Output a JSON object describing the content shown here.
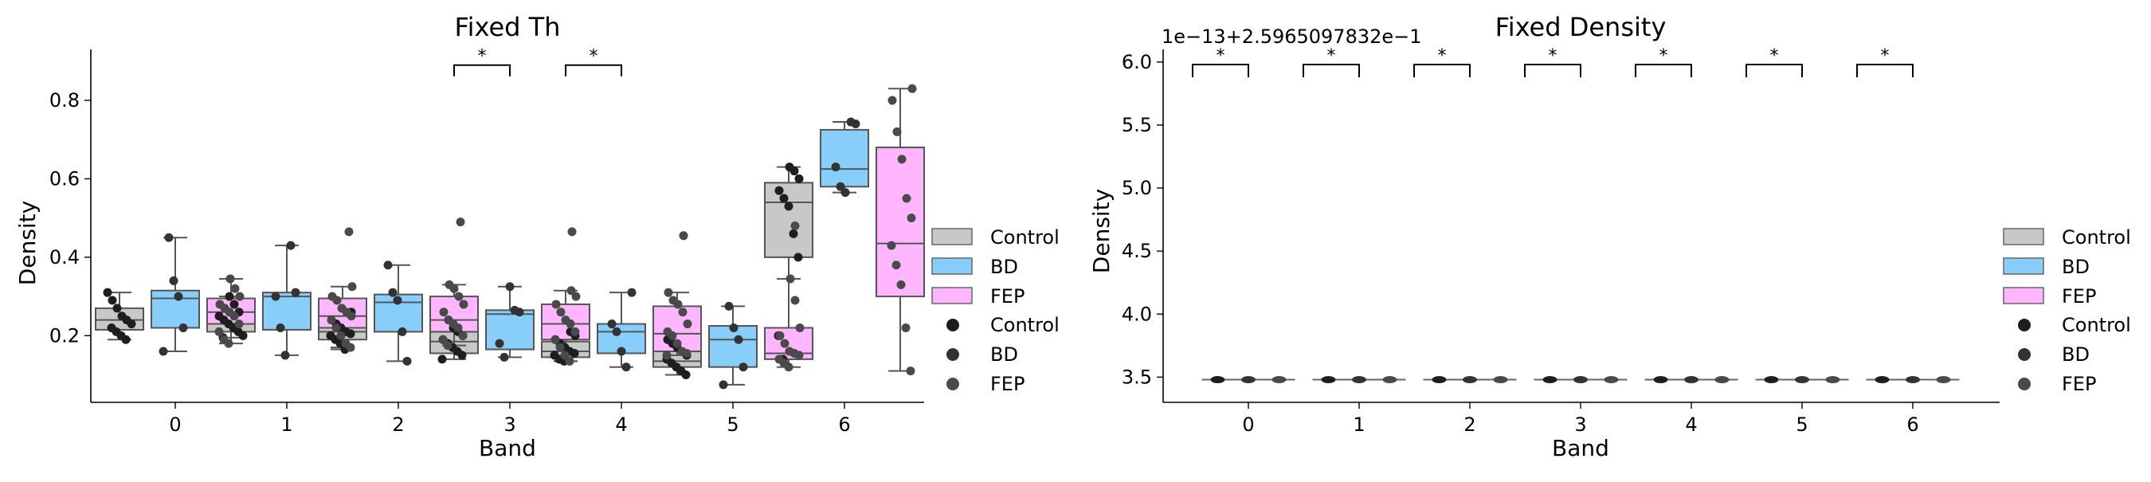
{
  "chart_data": [
    {
      "type": "box",
      "title": "Fixed Th",
      "xlabel": "Band",
      "ylabel": "Density",
      "categories": [
        "0",
        "1",
        "2",
        "3",
        "4",
        "5",
        "6"
      ],
      "yticks": [
        "0.2",
        "0.4",
        "0.6",
        "0.8"
      ],
      "ylim": [
        0.03,
        0.93
      ],
      "series": [
        {
          "name": "Control",
          "color": "#c8c8c8",
          "boxes": [
            {
              "whislo": 0.19,
              "q1": 0.215,
              "med": 0.24,
              "q3": 0.27,
              "whishi": 0.31
            },
            {
              "whislo": 0.195,
              "q1": 0.21,
              "med": 0.24,
              "q3": 0.265,
              "whishi": 0.3
            },
            {
              "whislo": 0.165,
              "q1": 0.19,
              "med": 0.21,
              "q3": 0.235,
              "whishi": 0.26
            },
            {
              "whislo": 0.14,
              "q1": 0.155,
              "med": 0.185,
              "q3": 0.21,
              "whishi": 0.24
            },
            {
              "whislo": 0.135,
              "q1": 0.145,
              "med": 0.16,
              "q3": 0.185,
              "whishi": 0.21
            },
            {
              "whislo": 0.1,
              "q1": 0.12,
              "med": 0.135,
              "q3": 0.16,
              "whishi": 0.19
            },
            {
              "whislo": 0.14,
              "q1": 0.4,
              "med": 0.54,
              "q3": 0.59,
              "whishi": 0.63
            }
          ],
          "points": [
            [
              0.31,
              0.29,
              0.27,
              0.25,
              0.24,
              0.23,
              0.22,
              0.21,
              0.2,
              0.19
            ],
            [
              0.3,
              0.28,
              0.26,
              0.25,
              0.24,
              0.23,
              0.22,
              0.21,
              0.2,
              0.195
            ],
            [
              0.26,
              0.24,
              0.23,
              0.22,
              0.21,
              0.205,
              0.2,
              0.19,
              0.18,
              0.165
            ],
            [
              0.24,
              0.22,
              0.21,
              0.2,
              0.19,
              0.18,
              0.17,
              0.16,
              0.15,
              0.14
            ],
            [
              0.21,
              0.2,
              0.19,
              0.18,
              0.17,
              0.16,
              0.155,
              0.15,
              0.14,
              0.135
            ],
            [
              0.19,
              0.18,
              0.17,
              0.16,
              0.15,
              0.14,
              0.13,
              0.12,
              0.11,
              0.1
            ],
            [
              0.63,
              0.62,
              0.6,
              0.57,
              0.55,
              0.53,
              0.46,
              0.4,
              0.2,
              0.14
            ]
          ]
        },
        {
          "name": "BD",
          "color": "#87cefa",
          "boxes": [
            {
              "whislo": 0.16,
              "q1": 0.22,
              "med": 0.295,
              "q3": 0.315,
              "whishi": 0.45
            },
            {
              "whislo": 0.15,
              "q1": 0.215,
              "med": 0.3,
              "q3": 0.31,
              "whishi": 0.43
            },
            {
              "whislo": 0.135,
              "q1": 0.21,
              "med": 0.285,
              "q3": 0.305,
              "whishi": 0.38
            },
            {
              "whislo": 0.145,
              "q1": 0.165,
              "med": 0.255,
              "q3": 0.265,
              "whishi": 0.325
            },
            {
              "whislo": 0.12,
              "q1": 0.155,
              "med": 0.21,
              "q3": 0.23,
              "whishi": 0.31
            },
            {
              "whislo": 0.075,
              "q1": 0.12,
              "med": 0.19,
              "q3": 0.225,
              "whishi": 0.275
            },
            {
              "whislo": 0.565,
              "q1": 0.58,
              "med": 0.625,
              "q3": 0.725,
              "whishi": 0.745
            }
          ],
          "points": [
            [
              0.45,
              0.34,
              0.3,
              0.22,
              0.16
            ],
            [
              0.43,
              0.31,
              0.3,
              0.22,
              0.15
            ],
            [
              0.38,
              0.31,
              0.29,
              0.21,
              0.135
            ],
            [
              0.325,
              0.265,
              0.26,
              0.18,
              0.145
            ],
            [
              0.31,
              0.23,
              0.21,
              0.16,
              0.12
            ],
            [
              0.275,
              0.22,
              0.19,
              0.12,
              0.075
            ],
            [
              0.745,
              0.74,
              0.63,
              0.58,
              0.565
            ]
          ]
        },
        {
          "name": "FEP",
          "color": "#ffb6ff",
          "boxes": [
            {
              "whislo": 0.18,
              "q1": 0.23,
              "med": 0.26,
              "q3": 0.295,
              "whishi": 0.345
            },
            {
              "whislo": 0.17,
              "q1": 0.22,
              "med": 0.25,
              "q3": 0.295,
              "whishi": 0.325
            },
            {
              "whislo": 0.175,
              "q1": 0.21,
              "med": 0.24,
              "q3": 0.3,
              "whishi": 0.33
            },
            {
              "whislo": 0.135,
              "q1": 0.19,
              "med": 0.23,
              "q3": 0.28,
              "whishi": 0.315
            },
            {
              "whislo": 0.15,
              "q1": 0.16,
              "med": 0.205,
              "q3": 0.275,
              "whishi": 0.31
            },
            {
              "whislo": 0.12,
              "q1": 0.14,
              "med": 0.155,
              "q3": 0.22,
              "whishi": 0.345
            },
            {
              "whislo": 0.11,
              "q1": 0.3,
              "med": 0.435,
              "q3": 0.68,
              "whishi": 0.83
            }
          ],
          "points": [
            [
              0.345,
              0.32,
              0.3,
              0.28,
              0.27,
              0.26,
              0.25,
              0.23,
              0.21,
              0.19,
              0.18
            ],
            [
              0.325,
              0.3,
              0.29,
              0.27,
              0.26,
              0.25,
              0.24,
              0.22,
              0.2,
              0.18,
              0.17
            ],
            [
              0.33,
              0.32,
              0.3,
              0.28,
              0.26,
              0.24,
              0.23,
              0.22,
              0.2,
              0.19,
              0.175
            ],
            [
              0.315,
              0.3,
              0.28,
              0.26,
              0.24,
              0.23,
              0.21,
              0.19,
              0.17,
              0.15,
              0.135
            ],
            [
              0.31,
              0.29,
              0.28,
              0.26,
              0.23,
              0.21,
              0.2,
              0.18,
              0.16,
              0.155,
              0.15
            ],
            [
              0.345,
              0.29,
              0.22,
              0.2,
              0.18,
              0.16,
              0.155,
              0.15,
              0.14,
              0.13,
              0.12
            ],
            [
              0.83,
              0.8,
              0.72,
              0.65,
              0.55,
              0.5,
              0.43,
              0.38,
              0.33,
              0.22,
              0.11
            ]
          ],
          "outliers": [
            [],
            [
              0.465
            ],
            [
              0.49
            ],
            [
              0.465
            ],
            [
              0.455
            ],
            [
              0.48
            ],
            []
          ]
        }
      ],
      "significance": [
        {
          "from": "3",
          "to": "3",
          "label": "*",
          "y": 0.89
        },
        {
          "from": "4",
          "to": "4",
          "label": "*",
          "y": 0.89
        }
      ],
      "legend": {
        "placement": "right",
        "patches": [
          "Control",
          "BD",
          "FEP"
        ],
        "markers": [
          "Control",
          "BD",
          "FEP"
        ]
      }
    },
    {
      "type": "box",
      "title": "Fixed Density",
      "offset_label": "1e−13+2.5965097832e−1",
      "xlabel": "Band",
      "ylabel": "Density",
      "categories": [
        "0",
        "1",
        "2",
        "3",
        "4",
        "5",
        "6"
      ],
      "yticks": [
        "3.5",
        "4.0",
        "4.5",
        "5.0",
        "5.5",
        "6.0"
      ],
      "ylim": [
        3.3,
        6.1
      ],
      "constant_value": 3.48,
      "series": [
        {
          "name": "Control",
          "color": "#c8c8c8"
        },
        {
          "name": "BD",
          "color": "#87cefa"
        },
        {
          "name": "FEP",
          "color": "#ffb6ff"
        }
      ],
      "significance": [
        {
          "from": "0",
          "to": "0",
          "label": "*",
          "y": 5.98
        },
        {
          "from": "1",
          "to": "1",
          "label": "*",
          "y": 5.98
        },
        {
          "from": "2",
          "to": "2",
          "label": "*",
          "y": 5.98
        },
        {
          "from": "3",
          "to": "3",
          "label": "*",
          "y": 5.98
        },
        {
          "from": "4",
          "to": "4",
          "label": "*",
          "y": 5.98
        },
        {
          "from": "5",
          "to": "5",
          "label": "*",
          "y": 5.98
        },
        {
          "from": "6",
          "to": "6",
          "label": "*",
          "y": 5.98
        }
      ],
      "legend": {
        "placement": "right",
        "patches": [
          "Control",
          "BD",
          "FEP"
        ],
        "markers": [
          "Control",
          "BD",
          "FEP"
        ]
      }
    }
  ]
}
